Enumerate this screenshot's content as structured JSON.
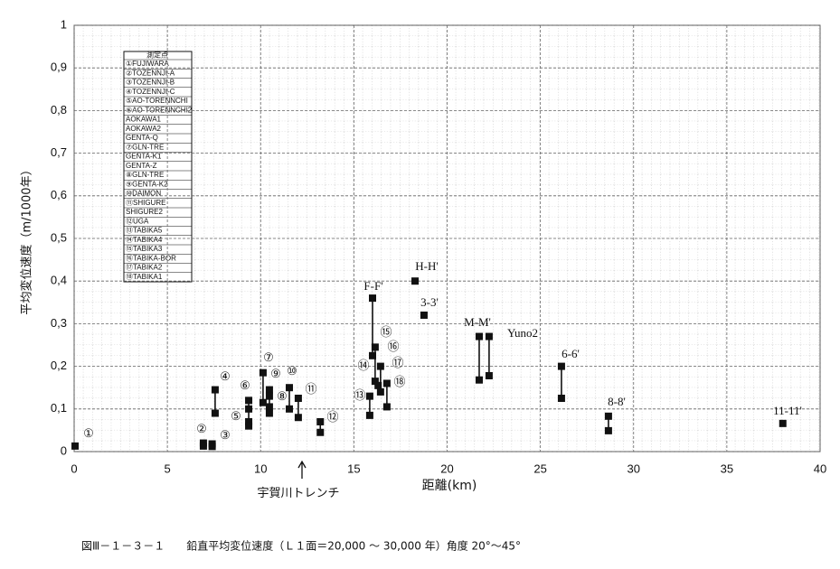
{
  "chart_data": {
    "type": "scatter",
    "x_label": "距離(km)",
    "y_label": "平均変位速度（m/1000年）",
    "caption": "図Ⅲ－１－３－１　　鉛直平均変位速度（Ｌ１面＝20,000 ～ 30,000 年）角度 20°～45°",
    "xlim": [
      0,
      40
    ],
    "ylim": [
      0,
      1
    ],
    "xticks": [
      0,
      5,
      10,
      15,
      20,
      25,
      30,
      35,
      40
    ],
    "yticks": [
      0,
      {
        "value": 0.1,
        "label": "0,1"
      },
      {
        "value": 0.2,
        "label": "0,2"
      },
      {
        "value": 0.3,
        "label": "0,3"
      },
      {
        "value": 0.4,
        "label": "0,4"
      },
      {
        "value": 0.5,
        "label": "0,5"
      },
      {
        "value": 0.6,
        "label": "0,6"
      },
      {
        "value": 0.7,
        "label": "0,7"
      },
      {
        "value": 0.8,
        "label": "0,8"
      },
      {
        "value": 0.9,
        "label": "0,9"
      },
      1
    ],
    "grid": true,
    "color": "#111111",
    "points": [
      {
        "x": 0.05,
        "y": [
          0.013
        ]
      },
      {
        "x": 6.93,
        "y": [
          0.02,
          0.013
        ]
      },
      {
        "x": 7.4,
        "y": [
          0.018,
          0.012
        ]
      },
      {
        "x": 7.56,
        "y": [
          0.145,
          0.09
        ]
      },
      {
        "x": 9.36,
        "y": [
          0.12,
          0.1,
          0.07,
          0.06
        ]
      },
      {
        "x": 10.13,
        "y": [
          0.185,
          0.115
        ]
      },
      {
        "x": 10.47,
        "y": [
          0.145,
          0.13,
          0.105,
          0.09
        ]
      },
      {
        "x": 11.54,
        "y": [
          0.15,
          0.1
        ]
      },
      {
        "x": 12.02,
        "y": [
          0.125,
          0.08
        ]
      },
      {
        "x": 13.2,
        "y": [
          0.07,
          0.045
        ]
      },
      {
        "x": 15.85,
        "y": [
          0.13,
          0.085
        ]
      },
      {
        "x": 16.0,
        "y": [
          0.36,
          0.225
        ]
      },
      {
        "x": 16.14,
        "y": [
          0.245,
          0.165
        ]
      },
      {
        "x": 16.3,
        "y": [
          0.155
        ]
      },
      {
        "x": 16.43,
        "y": [
          0.2,
          0.14
        ]
      },
      {
        "x": 16.77,
        "y": [
          0.16,
          0.105
        ]
      },
      {
        "x": 18.28,
        "y": [
          0.4
        ]
      },
      {
        "x": 18.76,
        "y": [
          0.32
        ]
      },
      {
        "x": 21.72,
        "y": [
          0.27,
          0.168
        ]
      },
      {
        "x": 22.25,
        "y": [
          0.27,
          0.178
        ]
      },
      {
        "x": 26.13,
        "y": [
          0.2,
          0.125
        ]
      },
      {
        "x": 28.65,
        "y": [
          0.083,
          0.049
        ]
      },
      {
        "x": 38.0,
        "y": [
          0.066
        ]
      }
    ],
    "annotations": [
      "①",
      "②",
      "③",
      "④",
      "⑤",
      "⑥",
      "⑦",
      "⑧",
      "⑨",
      "⑩",
      "⑪",
      "⑫",
      "⑬",
      "⑭",
      "⑮",
      "⑯",
      "⑰",
      "⑱",
      "F-F'",
      "H-H'",
      "3-3'",
      "M-M'",
      "Yuno2",
      "6-6'",
      "8-8'",
      "11-11'",
      "宇賀川トレンチ"
    ],
    "legend": {
      "title": "測定点",
      "entries": [
        "①FUJIWARA",
        "②TOZENNJI-A",
        "③TOZENNJI-B",
        "④TOZENNJI-C",
        "⑤AO-TORENNCHI",
        "⑥AO-TORENNCHI2",
        "AOKAWA1",
        "AOKAWA2",
        "GENTA-Q",
        "⑦GLN-TRE",
        "GENTA-K1",
        "GENTA-Z",
        "⑧GLN-TRE",
        "⑨GENTA-K2",
        "⑩DAIMON",
        "⑪SHIGURE",
        "SHIGURE2",
        "⑫UGA",
        "⑬TABIKA5",
        "⑭TABIKA4",
        "⑮TABIKA3",
        "⑯TABIKA-BOR",
        "⑰TABIKA2",
        "⑱TABIKA1"
      ]
    }
  }
}
